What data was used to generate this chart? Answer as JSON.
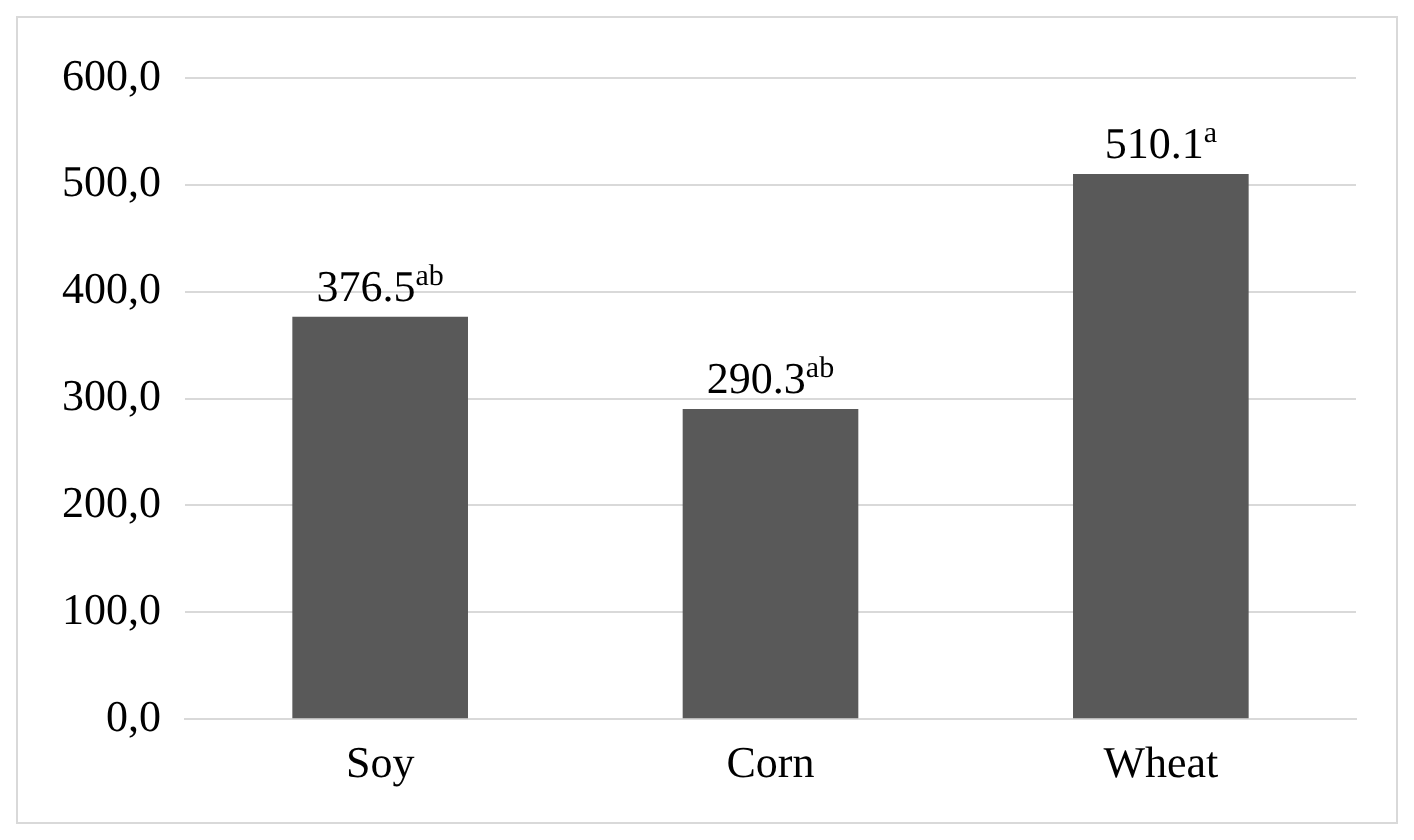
{
  "chart_data": {
    "type": "bar",
    "categories": [
      "Soy",
      "Corn",
      "Wheat"
    ],
    "values": [
      376.5,
      290.3,
      510.1
    ],
    "value_labels": [
      "376.5$^{ab}$",
      "290.3$^{ab}$",
      "510.1$^{a}$"
    ],
    "color": "#595959",
    "ylim": [
      0,
      600
    ],
    "yticks": [
      {
        "value": 0,
        "label": "0,0"
      },
      {
        "value": 100,
        "label": "100,0"
      },
      {
        "value": 200,
        "label": "200,0"
      },
      {
        "value": 300,
        "label": "300,0"
      },
      {
        "value": 400,
        "label": "400,0"
      },
      {
        "value": 500,
        "label": "500,0"
      },
      {
        "value": 600,
        "label": "600,0"
      }
    ],
    "grid": "y",
    "legend": false
  }
}
